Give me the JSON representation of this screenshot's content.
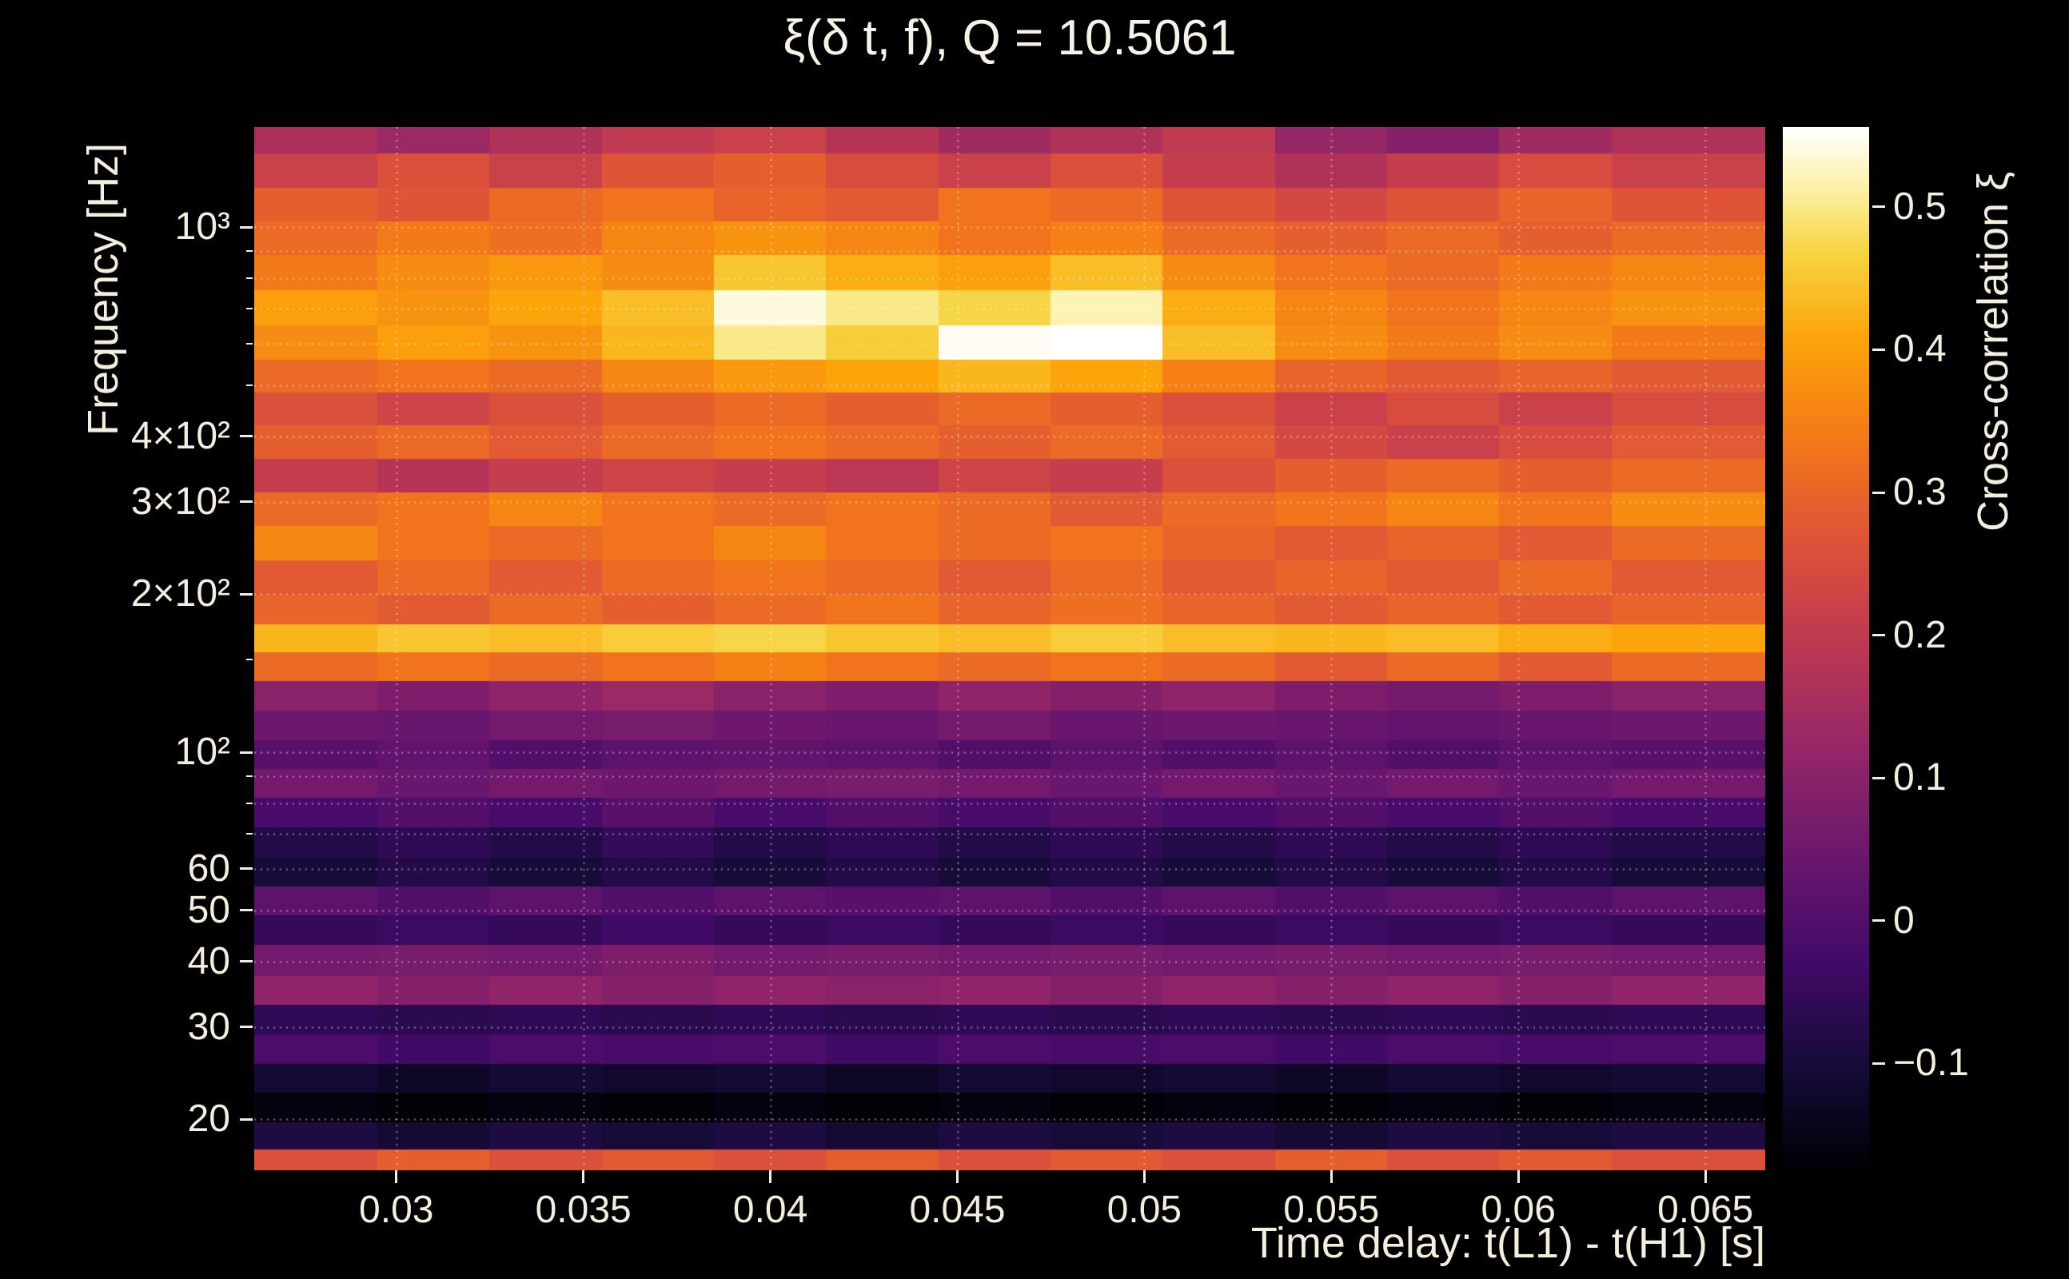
{
  "colors": {
    "background": "#000000",
    "text": "#f4eede",
    "grid": "rgba(255,255,255,0.45)",
    "tick": "#f4eede"
  },
  "chart_data": {
    "type": "heatmap",
    "title": "ξ(δ t, f), Q = 10.5061",
    "xlabel": "Time delay: t(L1) - t(H1) [s]",
    "ylabel": "Frequency [Hz]",
    "colorbar_label": "Cross-correlation ξ",
    "x_scale": "linear",
    "y_scale": "log",
    "x_range": [
      0.0262,
      0.0666
    ],
    "y_range": [
      16,
      1550
    ],
    "value_range": [
      -0.175,
      0.556
    ],
    "x_ticks": [
      {
        "value": 0.03,
        "label": "0.03"
      },
      {
        "value": 0.035,
        "label": "0.035"
      },
      {
        "value": 0.04,
        "label": "0.04"
      },
      {
        "value": 0.045,
        "label": "0.045"
      },
      {
        "value": 0.05,
        "label": "0.05"
      },
      {
        "value": 0.055,
        "label": "0.055"
      },
      {
        "value": 0.06,
        "label": "0.06"
      },
      {
        "value": 0.065,
        "label": "0.065"
      }
    ],
    "y_ticks": [
      {
        "value": 1000,
        "label": "10³"
      },
      {
        "value": 400,
        "label": "4×10²"
      },
      {
        "value": 300,
        "label": "3×10²"
      },
      {
        "value": 200,
        "label": "2×10²"
      },
      {
        "value": 100,
        "label": "10²"
      },
      {
        "value": 60,
        "label": "60"
      },
      {
        "value": 50,
        "label": "50"
      },
      {
        "value": 40,
        "label": "40"
      },
      {
        "value": 30,
        "label": "30"
      },
      {
        "value": 20,
        "label": "20"
      }
    ],
    "y_minor_ticks": [
      70,
      80,
      90,
      150,
      500,
      600,
      700,
      800,
      900
    ],
    "colorbar_ticks": [
      {
        "value": 0.5,
        "label": "0.5"
      },
      {
        "value": 0.4,
        "label": "0.4"
      },
      {
        "value": 0.3,
        "label": "0.3"
      },
      {
        "value": 0.2,
        "label": "0.2"
      },
      {
        "value": 0.1,
        "label": "0.1"
      },
      {
        "value": 0.0,
        "label": "0"
      },
      {
        "value": -0.1,
        "label": "−0.1"
      }
    ],
    "grid_x": [
      0.03,
      0.035,
      0.04,
      0.045,
      0.05,
      0.055,
      0.06,
      0.065
    ],
    "grid_y": [
      20,
      30,
      40,
      50,
      60,
      70,
      80,
      90,
      100,
      200,
      300,
      400,
      500,
      600,
      700,
      800,
      900,
      1000
    ],
    "colormap": [
      {
        "pos": 0.0,
        "color": "#000004"
      },
      {
        "pos": 0.1,
        "color": "#160b39"
      },
      {
        "pos": 0.2,
        "color": "#420a68"
      },
      {
        "pos": 0.3,
        "color": "#6a176e"
      },
      {
        "pos": 0.4,
        "color": "#932667"
      },
      {
        "pos": 0.5,
        "color": "#bc3754"
      },
      {
        "pos": 0.6,
        "color": "#dd513a"
      },
      {
        "pos": 0.7,
        "color": "#f37819"
      },
      {
        "pos": 0.8,
        "color": "#fca50a"
      },
      {
        "pos": 0.88,
        "color": "#f6d542"
      },
      {
        "pos": 0.94,
        "color": "#fcf1a4"
      },
      {
        "pos": 1.0,
        "color": "#ffffff"
      }
    ],
    "x_centers": [
      0.028,
      0.031,
      0.034,
      0.037,
      0.04,
      0.043,
      0.046,
      0.049,
      0.052,
      0.055,
      0.058,
      0.061,
      0.064
    ],
    "f_centers": [
      1480,
      1280,
      1100,
      950,
      820,
      700,
      600,
      520,
      450,
      390,
      335,
      290,
      250,
      215,
      185,
      165,
      145,
      128,
      112,
      99,
      87,
      77,
      67,
      59,
      52,
      46,
      40,
      35,
      31,
      27,
      24,
      21,
      18.5,
      16.5
    ],
    "values": [
      [
        0.16,
        0.13,
        0.17,
        0.2,
        0.22,
        0.18,
        0.14,
        0.17,
        0.2,
        0.12,
        0.09,
        0.14,
        0.17
      ],
      [
        0.22,
        0.26,
        0.22,
        0.27,
        0.29,
        0.25,
        0.22,
        0.26,
        0.21,
        0.17,
        0.21,
        0.25,
        0.22
      ],
      [
        0.29,
        0.27,
        0.31,
        0.33,
        0.3,
        0.28,
        0.33,
        0.31,
        0.27,
        0.24,
        0.27,
        0.3,
        0.27
      ],
      [
        0.31,
        0.34,
        0.32,
        0.36,
        0.38,
        0.36,
        0.33,
        0.35,
        0.31,
        0.29,
        0.31,
        0.29,
        0.31
      ],
      [
        0.34,
        0.37,
        0.39,
        0.37,
        0.45,
        0.42,
        0.4,
        0.44,
        0.37,
        0.33,
        0.31,
        0.34,
        0.36
      ],
      [
        0.4,
        0.38,
        0.41,
        0.44,
        0.54,
        0.5,
        0.47,
        0.52,
        0.42,
        0.36,
        0.33,
        0.36,
        0.38
      ],
      [
        0.37,
        0.4,
        0.38,
        0.43,
        0.5,
        0.46,
        0.55,
        0.56,
        0.44,
        0.37,
        0.34,
        0.37,
        0.34
      ],
      [
        0.31,
        0.33,
        0.31,
        0.36,
        0.39,
        0.41,
        0.43,
        0.41,
        0.35,
        0.3,
        0.28,
        0.3,
        0.28
      ],
      [
        0.26,
        0.23,
        0.26,
        0.29,
        0.31,
        0.29,
        0.31,
        0.29,
        0.26,
        0.22,
        0.25,
        0.22,
        0.25
      ],
      [
        0.29,
        0.31,
        0.28,
        0.31,
        0.33,
        0.31,
        0.29,
        0.31,
        0.28,
        0.24,
        0.22,
        0.25,
        0.28
      ],
      [
        0.21,
        0.18,
        0.21,
        0.23,
        0.21,
        0.19,
        0.23,
        0.21,
        0.26,
        0.29,
        0.31,
        0.29,
        0.31
      ],
      [
        0.31,
        0.33,
        0.36,
        0.33,
        0.31,
        0.33,
        0.31,
        0.28,
        0.31,
        0.33,
        0.36,
        0.33,
        0.37
      ],
      [
        0.36,
        0.33,
        0.31,
        0.33,
        0.36,
        0.33,
        0.31,
        0.33,
        0.3,
        0.28,
        0.3,
        0.28,
        0.31
      ],
      [
        0.28,
        0.31,
        0.28,
        0.31,
        0.33,
        0.31,
        0.28,
        0.31,
        0.28,
        0.3,
        0.28,
        0.31,
        0.28
      ],
      [
        0.3,
        0.28,
        0.31,
        0.29,
        0.31,
        0.33,
        0.3,
        0.32,
        0.3,
        0.28,
        0.3,
        0.28,
        0.3
      ],
      [
        0.43,
        0.45,
        0.44,
        0.46,
        0.47,
        0.45,
        0.44,
        0.46,
        0.44,
        0.43,
        0.44,
        0.42,
        0.41
      ],
      [
        0.31,
        0.33,
        0.31,
        0.33,
        0.35,
        0.33,
        0.31,
        0.33,
        0.31,
        0.28,
        0.31,
        0.28,
        0.31
      ],
      [
        0.1,
        0.08,
        0.11,
        0.13,
        0.1,
        0.08,
        0.11,
        0.09,
        0.11,
        0.08,
        0.06,
        0.08,
        0.1
      ],
      [
        0.05,
        0.04,
        0.06,
        0.07,
        0.05,
        0.04,
        0.06,
        0.04,
        0.05,
        0.04,
        0.03,
        0.04,
        0.05
      ],
      [
        0.01,
        0.03,
        0.0,
        0.02,
        0.03,
        0.02,
        0.0,
        0.02,
        0.0,
        0.02,
        0.0,
        0.02,
        0.01
      ],
      [
        0.06,
        0.04,
        0.06,
        0.05,
        0.06,
        0.07,
        0.06,
        0.04,
        0.06,
        0.04,
        0.06,
        0.04,
        0.06
      ],
      [
        -0.02,
        0.0,
        -0.02,
        0.01,
        -0.02,
        0.0,
        -0.02,
        0.0,
        -0.02,
        0.0,
        -0.02,
        0.0,
        -0.02
      ],
      [
        -0.08,
        -0.06,
        -0.08,
        -0.05,
        -0.08,
        -0.06,
        -0.08,
        -0.06,
        -0.08,
        -0.06,
        -0.08,
        -0.06,
        -0.08
      ],
      [
        -0.1,
        -0.08,
        -0.1,
        -0.08,
        -0.1,
        -0.08,
        -0.1,
        -0.08,
        -0.1,
        -0.08,
        -0.1,
        -0.08,
        -0.1
      ],
      [
        0.02,
        0.0,
        0.02,
        0.0,
        0.02,
        0.01,
        0.02,
        0.0,
        0.02,
        0.0,
        0.02,
        0.0,
        0.02
      ],
      [
        -0.05,
        -0.04,
        -0.05,
        -0.03,
        -0.05,
        -0.04,
        -0.05,
        -0.04,
        -0.05,
        -0.04,
        -0.05,
        -0.04,
        -0.05
      ],
      [
        0.06,
        0.07,
        0.06,
        0.08,
        0.06,
        0.07,
        0.06,
        0.07,
        0.06,
        0.07,
        0.06,
        0.07,
        0.06
      ],
      [
        0.11,
        0.09,
        0.11,
        0.09,
        0.11,
        0.1,
        0.11,
        0.09,
        0.11,
        0.09,
        0.11,
        0.09,
        0.11
      ],
      [
        -0.06,
        -0.07,
        -0.06,
        -0.07,
        -0.06,
        -0.07,
        -0.06,
        -0.07,
        -0.06,
        -0.07,
        -0.06,
        -0.07,
        -0.06
      ],
      [
        -0.01,
        -0.03,
        -0.01,
        -0.02,
        -0.01,
        -0.03,
        -0.01,
        -0.02,
        -0.01,
        -0.03,
        -0.01,
        -0.02,
        -0.01
      ],
      [
        -0.11,
        -0.13,
        -0.11,
        -0.12,
        -0.11,
        -0.13,
        -0.11,
        -0.12,
        -0.11,
        -0.13,
        -0.11,
        -0.12,
        -0.11
      ],
      [
        -0.16,
        -0.17,
        -0.16,
        -0.17,
        -0.16,
        -0.17,
        -0.16,
        -0.17,
        -0.16,
        -0.17,
        -0.16,
        -0.17,
        -0.16
      ],
      [
        -0.09,
        -0.11,
        -0.09,
        -0.1,
        -0.09,
        -0.11,
        -0.09,
        -0.1,
        -0.09,
        -0.11,
        -0.09,
        -0.1,
        -0.09
      ],
      [
        0.26,
        0.29,
        0.26,
        0.28,
        0.26,
        0.29,
        0.26,
        0.28,
        0.26,
        0.29,
        0.26,
        0.28,
        0.26
      ]
    ]
  }
}
